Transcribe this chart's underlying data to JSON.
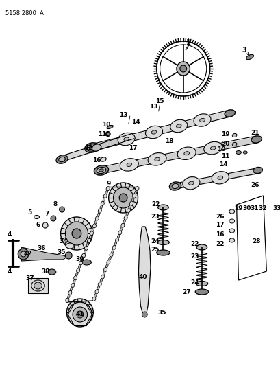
{
  "title": "5158 2800  A",
  "bg_color": "#ffffff",
  "line_color": "#000000",
  "gray_dark": "#555555",
  "gray_mid": "#888888",
  "gray_light": "#bbbbbb",
  "gray_very_light": "#dddddd"
}
